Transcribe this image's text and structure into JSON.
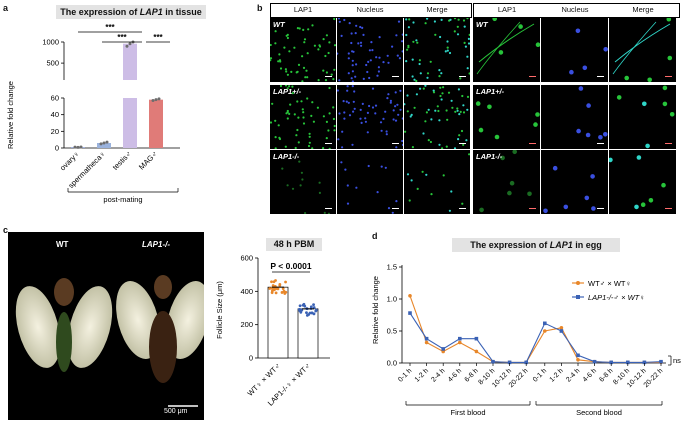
{
  "panel_a": {
    "label": "a",
    "title_pre": "The expression of ",
    "title_gene": "LAP1",
    "title_post": " in tissue",
    "ylabel": "Relative fold change",
    "group_label": "post-mating",
    "sig": [
      "***",
      "***",
      "***"
    ],
    "chart_data": {
      "type": "bar",
      "categories": [
        "ovary♀",
        "spermatheca♀",
        "testis♂",
        "MAG♂"
      ],
      "values": [
        1,
        6,
        960,
        58
      ],
      "replicates": [
        [
          1,
          0.8,
          1.2
        ],
        [
          5,
          6,
          7
        ],
        [
          900,
          960,
          1000
        ],
        [
          57,
          58,
          59
        ]
      ],
      "yaxis_break": [
        60,
        100
      ],
      "yticks": [
        0,
        20,
        40,
        60,
        500,
        1000
      ],
      "colors": [
        "#8fa3d8",
        "#9bb3dd",
        "#cdbde6",
        "#e07b78"
      ]
    }
  },
  "panel_b": {
    "label": "b",
    "col_headers": [
      "LAP1",
      "Nucleus",
      "Merge"
    ],
    "rows": [
      "WT",
      "LAP1+/-",
      "LAP1-/-"
    ]
  },
  "panel_c": {
    "label": "c",
    "img_left_label": "WT",
    "img_right_label": "LAP1-/-",
    "scale_label": "500 μm",
    "chart_title": "48 h PBM",
    "pvalue": "P < 0.0001",
    "ylabel": "Follicle Size (μm)",
    "chart_data": {
      "type": "bar",
      "categories": [
        "WT♀ × WT♂",
        "LAP1-/-♀ × WT♂"
      ],
      "values": [
        425,
        295
      ],
      "ylim": [
        0,
        600
      ],
      "yticks": [
        0,
        200,
        400,
        600
      ],
      "colors": [
        "#e8872a",
        "#3b62b5"
      ]
    }
  },
  "panel_d": {
    "label": "d",
    "title_pre": "The expression of ",
    "title_gene": "LAP1",
    "title_post": " in egg",
    "ylabel": "Relative fold change",
    "group1": "First blood",
    "group2": "Second blood",
    "ns": "ns",
    "chart_data": {
      "type": "line",
      "categories": [
        "0-1 h",
        "1-2 h",
        "2-4 h",
        "4-6 h",
        "6-8 h",
        "8-10 h",
        "10-12 h",
        "20-22 h",
        "0-1 h",
        "1-2 h",
        "2-4 h",
        "4-6 h",
        "6-8 h",
        "8-10 h",
        "10-12 h",
        "20-22 h"
      ],
      "ylim": [
        0,
        1.5
      ],
      "yticks": [
        0,
        0.5,
        1.0,
        1.5
      ],
      "series": [
        {
          "name": "WT♂ × WT♀",
          "color": "#e8872a",
          "values": [
            1.05,
            0.32,
            0.18,
            0.32,
            0.18,
            0.02,
            0.01,
            0.01,
            0.5,
            0.55,
            0.05,
            0.02,
            0.01,
            0.01,
            0.01,
            0.01
          ]
        },
        {
          "name": "LAP1-/-♂ × WT♀",
          "color": "#3b62b5",
          "values": [
            0.78,
            0.38,
            0.22,
            0.38,
            0.38,
            0.02,
            0.01,
            0.01,
            0.62,
            0.5,
            0.12,
            0.02,
            0.01,
            0.01,
            0.01,
            0.02
          ]
        }
      ]
    }
  }
}
